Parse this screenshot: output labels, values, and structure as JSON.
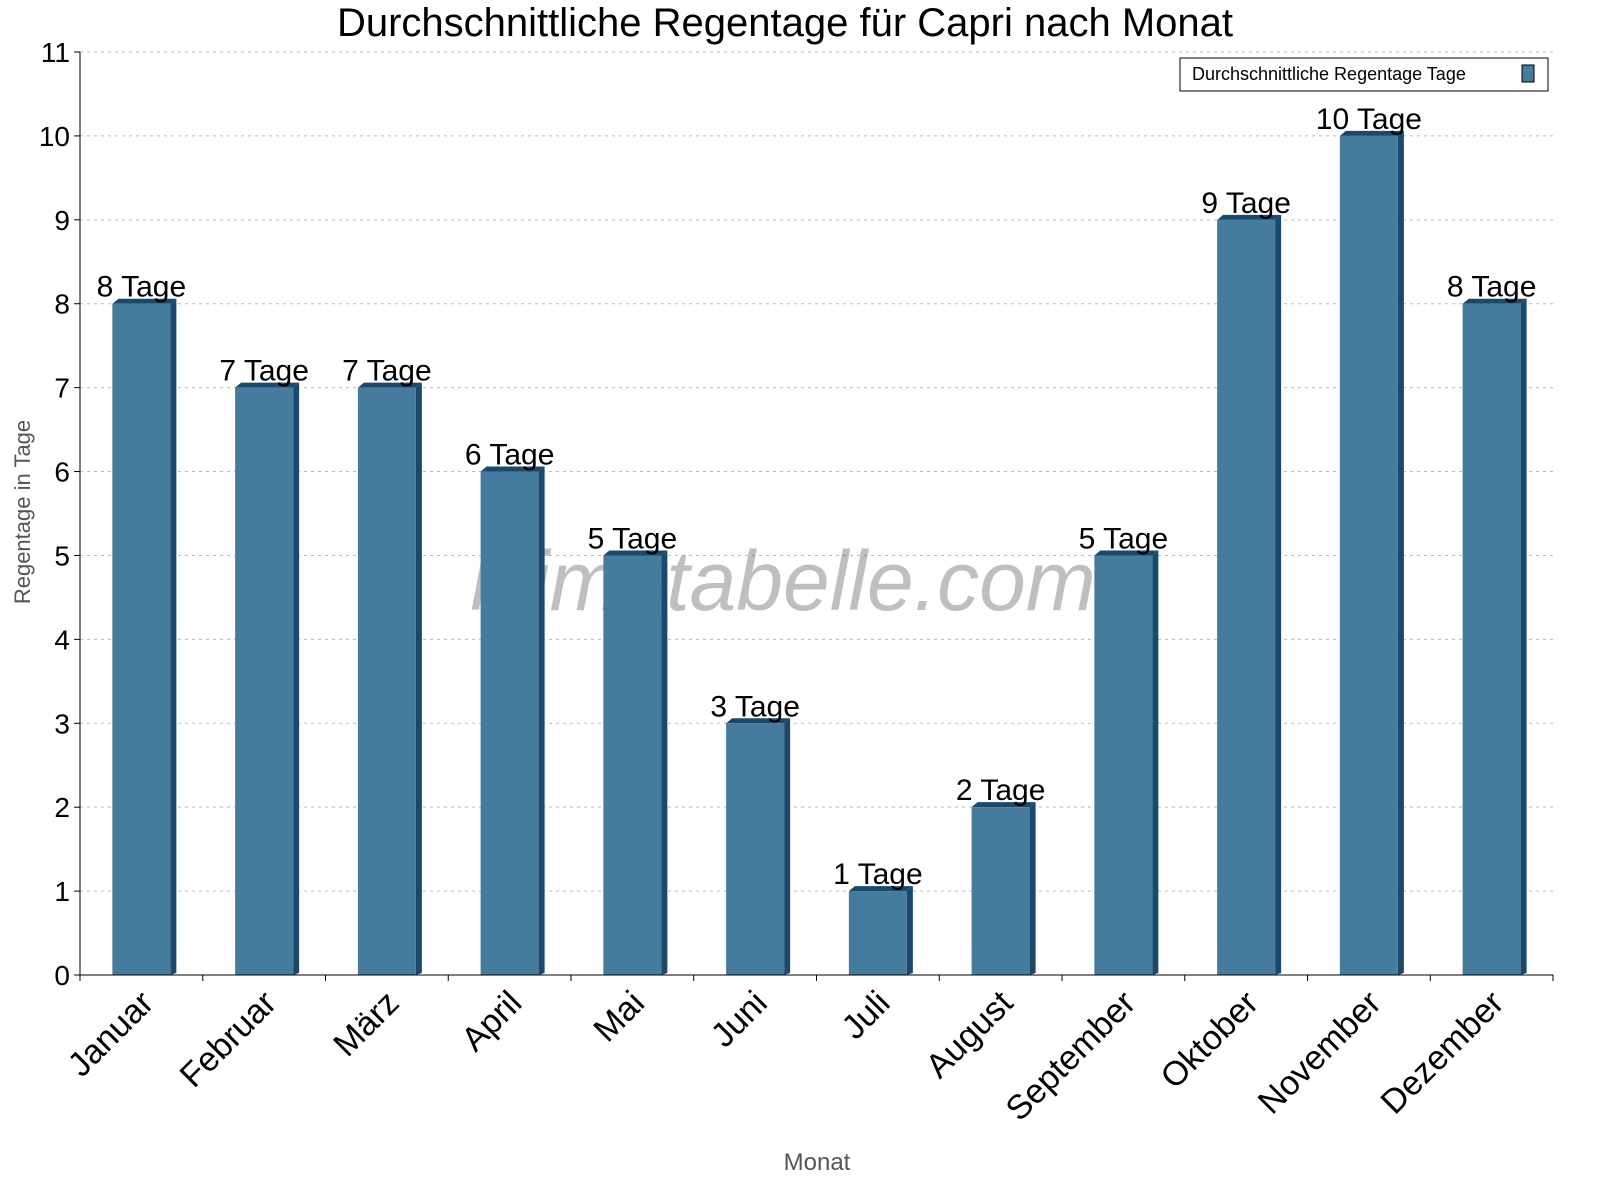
{
  "chart_data": {
    "type": "bar",
    "title": "Durchschnittliche Regentage für Capri nach Monat",
    "xlabel": "Monat",
    "ylabel": "Regentage in Tage",
    "categories": [
      "Januar",
      "Februar",
      "März",
      "April",
      "Mai",
      "Juni",
      "Juli",
      "August",
      "September",
      "Oktober",
      "November",
      "Dezember"
    ],
    "series": [
      {
        "name": "Durchschnittliche Regentage Tage",
        "values": [
          8,
          7,
          7,
          6,
          5,
          3,
          1,
          2,
          5,
          9,
          10,
          8
        ]
      }
    ],
    "data_labels": [
      "8 Tage",
      "7 Tage",
      "7 Tage",
      "6 Tage",
      "5 Tage",
      "3 Tage",
      "1 Tage",
      "2 Tage",
      "5 Tage",
      "9 Tage",
      "10 Tage",
      "8 Tage"
    ],
    "ylim": [
      0,
      11
    ],
    "yticks": [
      0,
      1,
      2,
      3,
      4,
      5,
      6,
      7,
      8,
      9,
      10,
      11
    ],
    "grid": true,
    "legend_position": "top-right",
    "colors": {
      "bar": "#457b9d",
      "bar_side": "#1a4a6b"
    },
    "watermark": "klimatabelle.com"
  }
}
